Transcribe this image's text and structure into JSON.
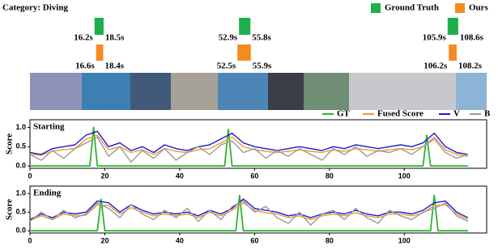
{
  "chart_data": [
    {
      "type": "segments",
      "title": "Category: Diving",
      "xlim": [
        0,
        118
      ],
      "series": [
        {
          "name": "Ground Truth",
          "color": "#1fae4e",
          "starts": [
            16.2,
            52.9,
            105.9
          ],
          "ends": [
            18.5,
            55.8,
            108.6
          ],
          "start_labels": [
            "16.2s",
            "52.9s",
            "105.9s"
          ],
          "end_labels": [
            "18.5s",
            "55.8s",
            "108.6s"
          ]
        },
        {
          "name": "Ours",
          "color": "#f58b1f",
          "starts": [
            16.6,
            52.5,
            106.2
          ],
          "ends": [
            18.4,
            55.9,
            108.2
          ],
          "start_labels": [
            "16.6s",
            "52.5s",
            "106.2s"
          ],
          "end_labels": [
            "18.4s",
            "55.9s",
            "108.2s"
          ]
        }
      ]
    },
    {
      "type": "line",
      "title": "Starting",
      "ylabel": "Score",
      "legend": "upper right",
      "xlim": [
        0,
        122
      ],
      "ylim": [
        -0.06,
        1.2
      ],
      "xticks": [
        0,
        20,
        40,
        60,
        80,
        100
      ],
      "yticks": [
        {
          "value": 0,
          "label": "0.0"
        },
        {
          "value": 0.5,
          "label": "0.5"
        },
        {
          "value": 1,
          "label": "1.0"
        }
      ],
      "x": [
        0,
        3,
        6,
        9,
        12,
        15,
        18,
        21,
        24,
        27,
        30,
        33,
        36,
        39,
        42,
        45,
        48,
        51,
        54,
        57,
        60,
        63,
        66,
        69,
        72,
        75,
        78,
        81,
        84,
        87,
        90,
        93,
        96,
        99,
        102,
        105,
        108,
        111,
        114,
        117
      ],
      "series": [
        {
          "name": "GT",
          "color": "#2db52d",
          "x": [
            0,
            16,
            17,
            18,
            52,
            53,
            54,
            105,
            106,
            107,
            117
          ],
          "values": [
            0,
            0,
            1,
            0,
            0,
            0.95,
            0,
            0,
            0.8,
            0,
            0
          ]
        },
        {
          "name": "Fused Score",
          "color": "#f39a2e",
          "values": [
            0.3,
            0.28,
            0.38,
            0.42,
            0.45,
            0.7,
            0.8,
            0.42,
            0.5,
            0.35,
            0.42,
            0.3,
            0.45,
            0.38,
            0.35,
            0.42,
            0.45,
            0.6,
            0.75,
            0.5,
            0.42,
            0.38,
            0.35,
            0.38,
            0.42,
            0.38,
            0.35,
            0.42,
            0.38,
            0.45,
            0.42,
            0.38,
            0.42,
            0.45,
            0.42,
            0.5,
            0.75,
            0.42,
            0.3,
            0.25
          ]
        },
        {
          "name": "V",
          "color": "#1a1adb",
          "values": [
            0.35,
            0.3,
            0.45,
            0.5,
            0.55,
            0.8,
            0.9,
            0.5,
            0.6,
            0.4,
            0.5,
            0.35,
            0.55,
            0.45,
            0.4,
            0.5,
            0.55,
            0.7,
            0.85,
            0.6,
            0.5,
            0.45,
            0.4,
            0.45,
            0.5,
            0.45,
            0.4,
            0.5,
            0.45,
            0.55,
            0.5,
            0.45,
            0.5,
            0.55,
            0.5,
            0.6,
            0.85,
            0.5,
            0.35,
            0.3
          ]
        },
        {
          "name": "B",
          "color": "#9a9a9a",
          "values": [
            0.3,
            0.15,
            0.4,
            0.2,
            0.45,
            0.6,
            0.75,
            0.25,
            0.5,
            0.1,
            0.4,
            0.2,
            0.45,
            0.15,
            0.35,
            0.5,
            0.3,
            0.55,
            0.65,
            0.35,
            0.45,
            0.2,
            0.4,
            0.25,
            0.45,
            0.3,
            0.15,
            0.45,
            0.3,
            0.5,
            0.25,
            0.4,
            0.35,
            0.45,
            0.3,
            0.5,
            0.7,
            0.35,
            0.2,
            0.3
          ]
        }
      ]
    },
    {
      "type": "line",
      "title": "Ending",
      "ylabel": "Score",
      "xlim": [
        0,
        122
      ],
      "ylim": [
        -0.06,
        1.2
      ],
      "xticks": [
        0,
        20,
        40,
        60,
        80,
        100
      ],
      "yticks": [
        {
          "value": 0,
          "label": "0.0"
        },
        {
          "value": 0.5,
          "label": "0.5"
        },
        {
          "value": 1,
          "label": "1.0"
        }
      ],
      "x": [
        0,
        3,
        6,
        9,
        12,
        15,
        18,
        21,
        24,
        27,
        30,
        33,
        36,
        39,
        42,
        45,
        48,
        51,
        54,
        57,
        60,
        63,
        66,
        69,
        72,
        75,
        78,
        81,
        84,
        87,
        90,
        93,
        96,
        99,
        102,
        105,
        108,
        111,
        114,
        117
      ],
      "series": [
        {
          "color": "#2db52d",
          "x": [
            0,
            18,
            19,
            20,
            55,
            56,
            57,
            107,
            108,
            109,
            117
          ],
          "values": [
            0,
            0,
            0.85,
            0,
            0,
            0.95,
            0,
            0,
            0.95,
            0,
            0
          ]
        },
        {
          "color": "#f39a2e",
          "values": [
            0.28,
            0.4,
            0.3,
            0.45,
            0.4,
            0.42,
            0.7,
            0.68,
            0.45,
            0.62,
            0.5,
            0.4,
            0.45,
            0.4,
            0.45,
            0.35,
            0.5,
            0.4,
            0.55,
            0.75,
            0.55,
            0.48,
            0.45,
            0.35,
            0.4,
            0.3,
            0.4,
            0.45,
            0.4,
            0.48,
            0.4,
            0.35,
            0.45,
            0.45,
            0.4,
            0.48,
            0.68,
            0.7,
            0.45,
            0.3
          ]
        },
        {
          "color": "#1a1adb",
          "values": [
            0.3,
            0.45,
            0.35,
            0.5,
            0.45,
            0.5,
            0.8,
            0.75,
            0.5,
            0.7,
            0.55,
            0.45,
            0.5,
            0.45,
            0.5,
            0.4,
            0.55,
            0.45,
            0.6,
            0.85,
            0.6,
            0.55,
            0.5,
            0.4,
            0.45,
            0.35,
            0.45,
            0.5,
            0.45,
            0.55,
            0.45,
            0.4,
            0.5,
            0.5,
            0.45,
            0.55,
            0.75,
            0.8,
            0.5,
            0.35
          ]
        },
        {
          "color": "#9a9a9a",
          "values": [
            0.25,
            0.5,
            0.3,
            0.55,
            0.35,
            0.45,
            0.75,
            0.6,
            0.35,
            0.7,
            0.45,
            0.3,
            0.55,
            0.35,
            0.6,
            0.25,
            0.55,
            0.3,
            0.65,
            0.8,
            0.5,
            0.65,
            0.35,
            0.2,
            0.5,
            0.15,
            0.45,
            0.55,
            0.3,
            0.6,
            0.35,
            0.2,
            0.55,
            0.4,
            0.3,
            0.5,
            0.6,
            0.75,
            0.4,
            0.25
          ]
        }
      ]
    }
  ]
}
